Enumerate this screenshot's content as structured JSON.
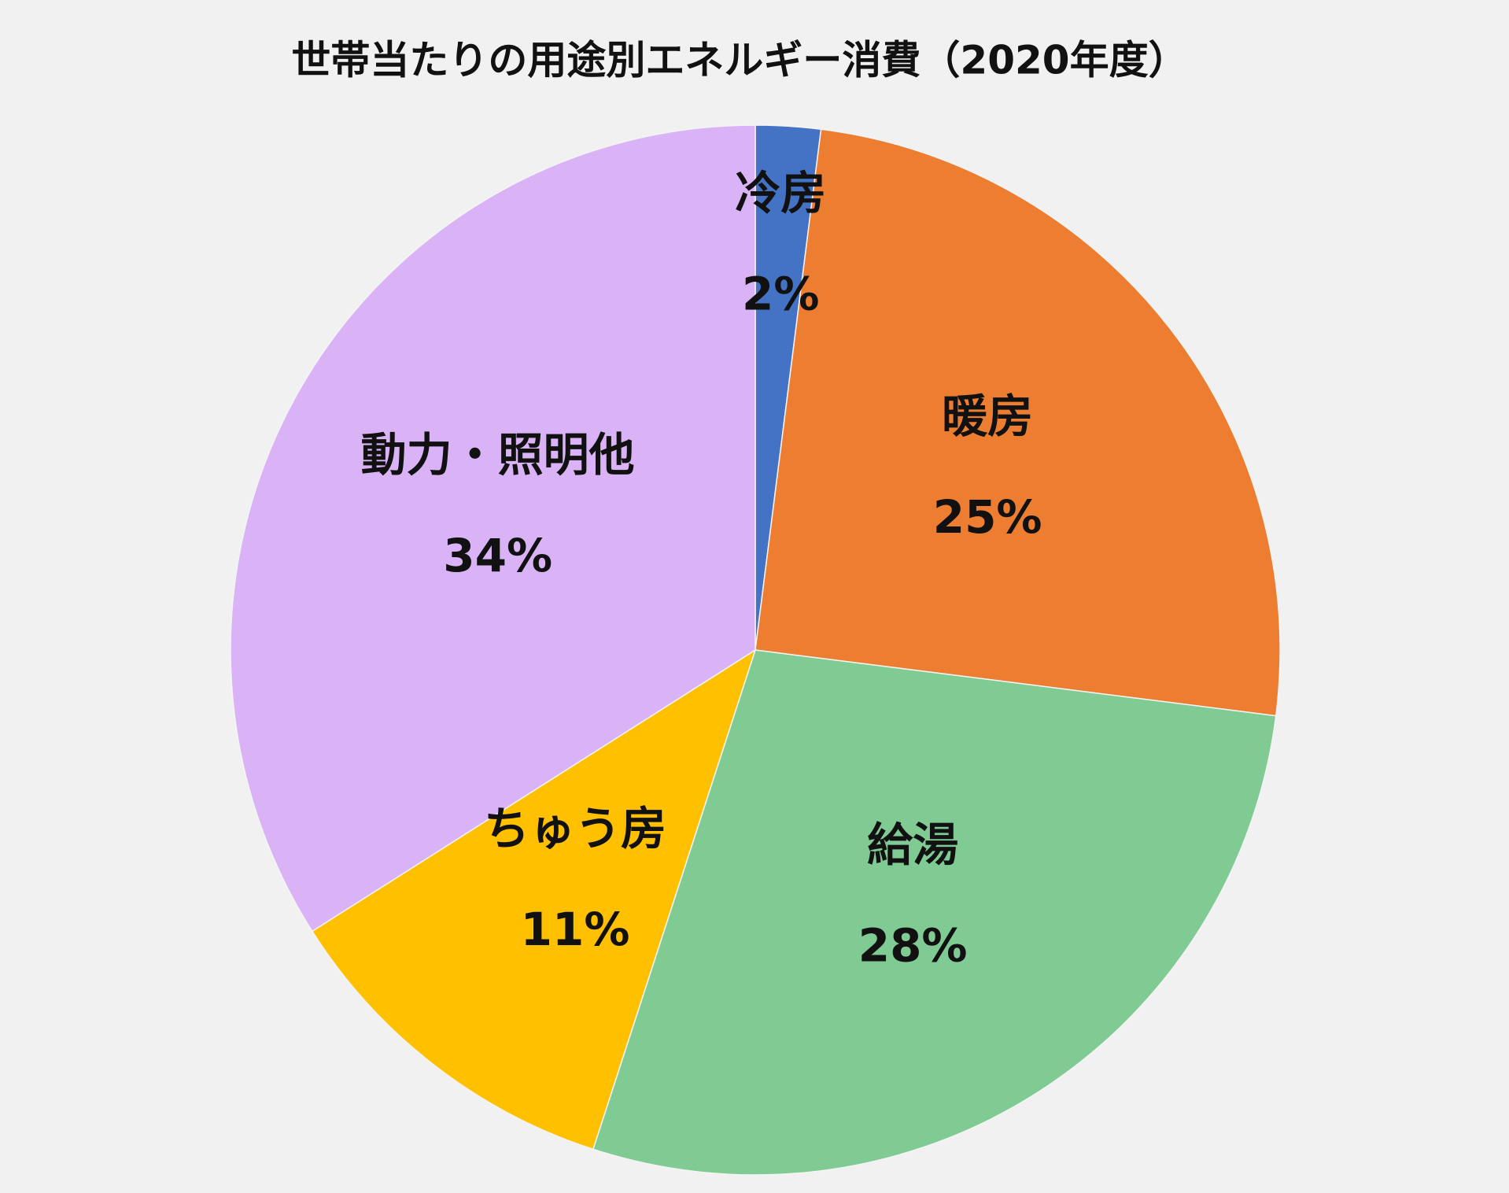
{
  "chart_data": {
    "type": "pie",
    "title": "世帯当たりの用途別エネルギー消費（2020年度）",
    "categories": [
      "冷房",
      "暖房",
      "給湯",
      "ちゅう房",
      "動力・照明他"
    ],
    "values": [
      2,
      25,
      28,
      11,
      34
    ],
    "value_labels": [
      "2%",
      "25%",
      "28%",
      "11%",
      "34%"
    ],
    "colors": [
      "#4472c4",
      "#ed7d31",
      "#7fcb93",
      "#ffc000",
      "#dab3f7"
    ]
  }
}
